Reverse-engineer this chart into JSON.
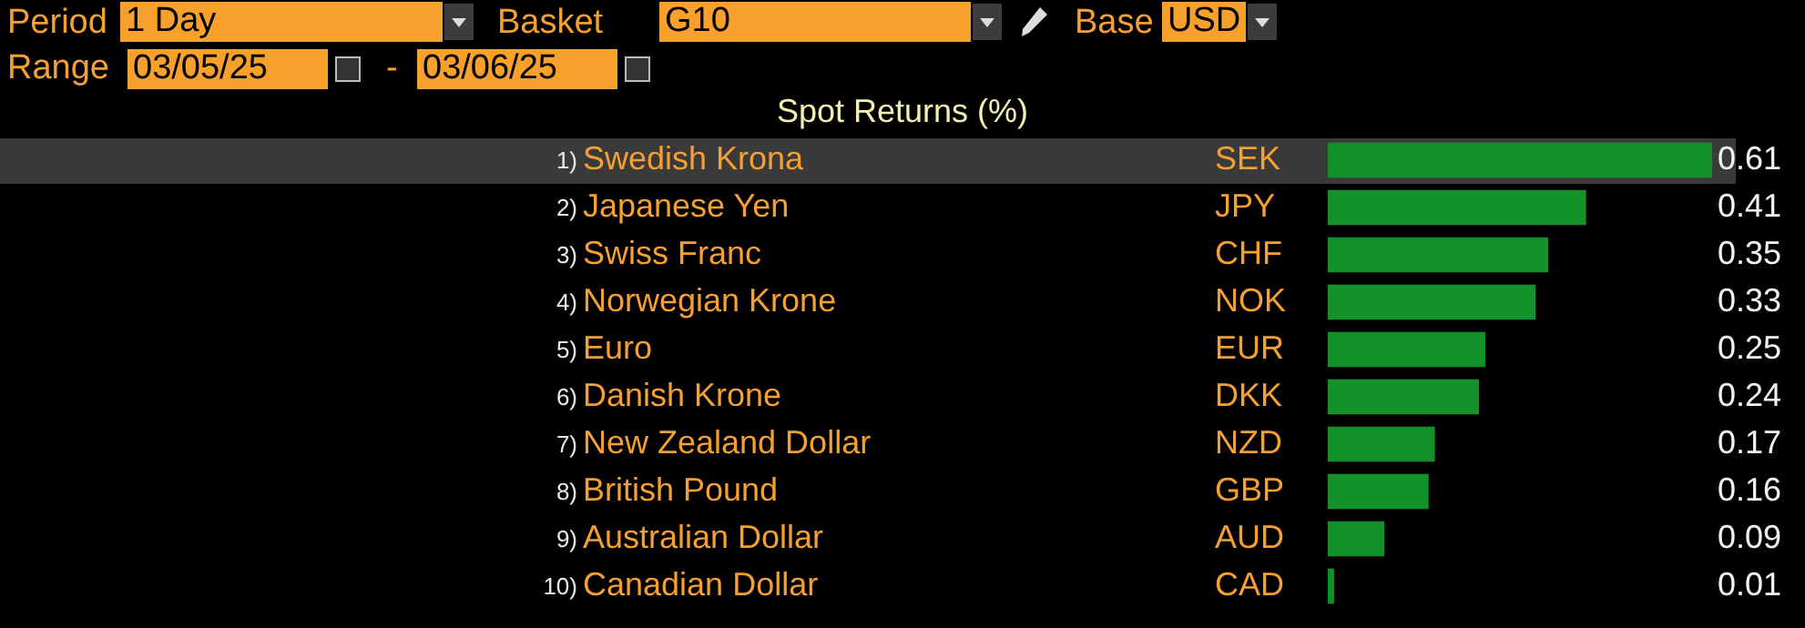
{
  "chart_data": {
    "type": "bar",
    "orientation": "horizontal",
    "title": "Spot Returns (%)",
    "categories": [
      "Swedish Krona",
      "Japanese Yen",
      "Swiss Franc",
      "Norwegian Krone",
      "Euro",
      "Danish Krone",
      "New Zealand Dollar",
      "British Pound",
      "Australian Dollar",
      "Canadian Dollar"
    ],
    "values": [
      0.61,
      0.41,
      0.35,
      0.33,
      0.25,
      0.24,
      0.17,
      0.16,
      0.09,
      0.01
    ],
    "color": "#13922c",
    "data_labels": true,
    "legend": false,
    "annotations": [
      "Period",
      "1 Day",
      "Basket",
      "G10",
      "Base",
      "USD",
      "Range",
      "03/05/25",
      "-",
      "03/06/25",
      "1)",
      "SEK",
      "2)",
      "JPY",
      "3)",
      "CHF",
      "4)",
      "NOK",
      "5)",
      "EUR",
      "6)",
      "DKK",
      "7)",
      "NZD",
      "8)",
      "GBP",
      "9)",
      "AUD",
      "10)",
      "CAD"
    ]
  }
}
